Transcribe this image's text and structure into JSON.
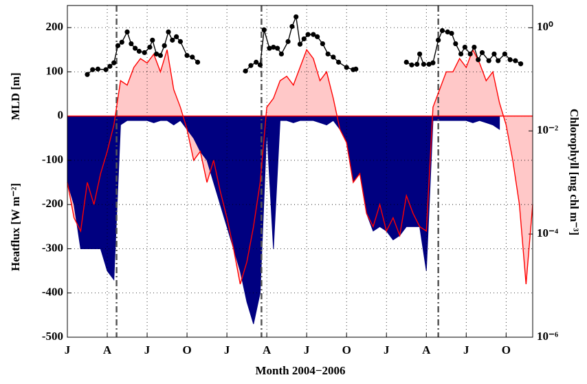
{
  "chart_data": {
    "type": "heatflux-mld-chl",
    "x_label": "Month 2004−2006",
    "y_label": "Heatflux [W m⁻²]",
    "y_label_2": "MLD [m]",
    "y2_label": "Chlorophyll [mg chl m⁻³]",
    "xlim": [
      0,
      35
    ],
    "xticks": [
      {
        "value": 0,
        "label": "J"
      },
      {
        "value": 3,
        "label": "A"
      },
      {
        "value": 6,
        "label": "J"
      },
      {
        "value": 9,
        "label": "O"
      },
      {
        "value": 12,
        "label": "J"
      },
      {
        "value": 15,
        "label": "A"
      },
      {
        "value": 18,
        "label": "J"
      },
      {
        "value": 21,
        "label": "O"
      },
      {
        "value": 24,
        "label": "J"
      },
      {
        "value": 27,
        "label": "A"
      },
      {
        "value": 30,
        "label": "J"
      },
      {
        "value": 33,
        "label": "O"
      }
    ],
    "ylim": [
      -500,
      250
    ],
    "yticks": [
      -500,
      -400,
      -300,
      -200,
      -100,
      0,
      100,
      200
    ],
    "y2lim": [
      1e-06,
      2.7
    ],
    "y2_log": true,
    "y2ticks": [
      {
        "value": 1,
        "label": "10⁰"
      },
      {
        "value": 0.01,
        "label": "10⁻²"
      },
      {
        "value": 0.0001,
        "label": "10⁻⁴"
      },
      {
        "value": 1e-06,
        "label": "10⁻⁶"
      }
    ],
    "grid": true,
    "event_lines": [
      3.7,
      14.6,
      27.9
    ],
    "x": [
      0,
      0.5,
      1,
      1.5,
      2,
      2.5,
      3,
      3.5,
      4,
      4.5,
      5,
      5.5,
      6,
      6.5,
      7,
      7.5,
      8,
      8.5,
      9,
      9.5,
      10,
      10.5,
      11,
      11.5,
      12,
      12.5,
      13,
      13.5,
      14,
      14.5,
      15,
      15.5,
      16,
      16.5,
      17,
      17.5,
      18,
      18.5,
      19,
      19.5,
      20,
      20.5,
      21,
      21.5,
      22,
      22.5,
      23,
      23.5,
      24,
      24.5,
      25,
      25.5,
      26,
      26.5,
      27,
      27.5,
      28,
      28.5,
      29,
      29.5,
      30,
      30.5,
      31,
      31.5,
      32,
      32.5,
      33,
      33.5,
      34,
      34.5,
      35
    ],
    "series": [
      {
        "name": "Heatflux",
        "color": "#ff0000",
        "fill": "#ffc8c8",
        "values": [
          -150,
          -230,
          -260,
          -150,
          -200,
          -130,
          -80,
          -20,
          80,
          70,
          110,
          130,
          120,
          140,
          100,
          150,
          60,
          20,
          -30,
          -100,
          -80,
          -150,
          -100,
          -170,
          -230,
          -300,
          -380,
          -330,
          -250,
          -150,
          20,
          40,
          80,
          90,
          70,
          110,
          150,
          130,
          80,
          100,
          40,
          -30,
          -60,
          -150,
          -130,
          -220,
          -250,
          -200,
          -260,
          -230,
          -270,
          -180,
          -220,
          -250,
          -260,
          20,
          60,
          100,
          100,
          130,
          110,
          150,
          120,
          80,
          100,
          30,
          -20,
          -100,
          -200,
          -380,
          -200
        ]
      },
      {
        "name": "MLD",
        "color": "#000080",
        "values": [
          -150,
          -200,
          -300,
          -300,
          -300,
          -300,
          -350,
          -370,
          -20,
          -10,
          -10,
          -10,
          -10,
          -15,
          -10,
          -10,
          -20,
          -10,
          -30,
          -50,
          -80,
          -100,
          -150,
          -200,
          -250,
          -300,
          -350,
          -420,
          -470,
          -400,
          -30,
          -300,
          -10,
          -10,
          -15,
          -10,
          -10,
          -10,
          -15,
          -20,
          -10,
          -30,
          -60,
          -150,
          -130,
          -220,
          -260,
          -250,
          -260,
          -280,
          -270,
          -250,
          -250,
          -250,
          -350,
          -10,
          -10,
          -10,
          -10,
          -10,
          -10,
          -15,
          -10,
          -15,
          -20,
          -30,
          null,
          null,
          null,
          null,
          null
        ]
      },
      {
        "name": "Chlorophyll",
        "color": "#000000",
        "axis": "y2",
        "x": [
          1.5,
          1.9,
          2.3,
          2.9,
          3.2,
          3.5,
          3.8,
          4.1,
          4.5,
          4.8,
          5.1,
          5.4,
          5.8,
          6.2,
          6.4,
          6.7,
          7.0,
          7.3,
          7.6,
          7.9,
          8.2,
          8.5,
          9.0,
          9.4,
          9.8,
          11,
          13.4,
          13.8,
          14.2,
          14.5,
          14.8,
          15.2,
          15.5,
          15.8,
          16.1,
          16.6,
          16.9,
          17.2,
          17.5,
          17.8,
          18.1,
          18.5,
          18.8,
          19.2,
          19.6,
          20.0,
          20.4,
          21.0,
          21.5,
          21.7,
          23.5,
          25.5,
          25.9,
          26.3,
          26.5,
          26.8,
          27.2,
          27.5,
          27.9,
          28.2,
          28.6,
          28.9,
          29.2,
          29.6,
          29.9,
          30.3,
          30.6,
          30.9,
          31.2,
          31.7,
          32.1,
          32.4,
          32.9,
          33.3,
          33.7,
          34.1
        ],
        "values": [
          0.124,
          0.154,
          0.158,
          0.154,
          0.179,
          0.209,
          0.45,
          0.525,
          0.83,
          0.49,
          0.4,
          0.35,
          0.33,
          0.42,
          0.575,
          0.31,
          0.29,
          0.45,
          0.83,
          0.575,
          0.67,
          0.54,
          0.29,
          0.27,
          0.215,
          null,
          0.145,
          0.185,
          0.215,
          0.19,
          0.91,
          0.4,
          0.42,
          0.4,
          0.31,
          0.54,
          1.06,
          1.63,
          0.48,
          0.61,
          0.74,
          0.74,
          0.67,
          0.49,
          0.31,
          0.27,
          0.215,
          0.17,
          0.154,
          0.158,
          null,
          0.215,
          0.19,
          0.196,
          0.31,
          0.196,
          0.196,
          0.209,
          0.575,
          0.88,
          0.83,
          0.78,
          0.49,
          0.31,
          0.42,
          0.31,
          0.42,
          0.24,
          0.33,
          0.23,
          0.31,
          0.23,
          0.31,
          0.24,
          0.23,
          0.2
        ]
      }
    ]
  }
}
